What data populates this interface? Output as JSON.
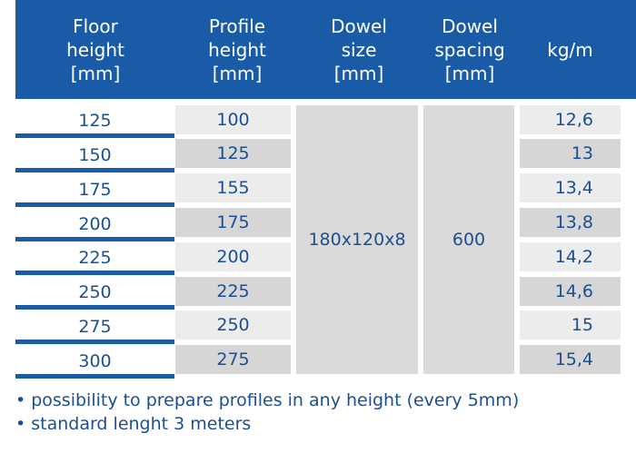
{
  "headers": {
    "floor": [
      "Floor",
      "height",
      "[mm]"
    ],
    "profile": [
      "Profile",
      "height",
      "[mm]"
    ],
    "dowel_size": [
      "Dowel",
      "size",
      "[mm]"
    ],
    "dowel_spacing": [
      "Dowel",
      "spacing",
      "[mm]"
    ],
    "kg": [
      "kg/m"
    ]
  },
  "rows": [
    {
      "floor": "125",
      "profile": "100",
      "kg": "12,6"
    },
    {
      "floor": "150",
      "profile": "125",
      "kg": "13"
    },
    {
      "floor": "175",
      "profile": "155",
      "kg": "13,4"
    },
    {
      "floor": "200",
      "profile": "175",
      "kg": "13,8"
    },
    {
      "floor": "225",
      "profile": "200",
      "kg": "14,2"
    },
    {
      "floor": "250",
      "profile": "225",
      "kg": "14,6"
    },
    {
      "floor": "275",
      "profile": "250",
      "kg": "15"
    },
    {
      "floor": "300",
      "profile": "275",
      "kg": "15,4"
    }
  ],
  "dowel_size": "180x120x8",
  "dowel_spacing": "600",
  "notes": [
    "possibility to prepare profiles in any height (every 5mm)",
    "standard lenght 3 meters"
  ],
  "bullet": "•",
  "colors": {
    "header": "#1a5ba8",
    "text": "#1a4f94"
  }
}
